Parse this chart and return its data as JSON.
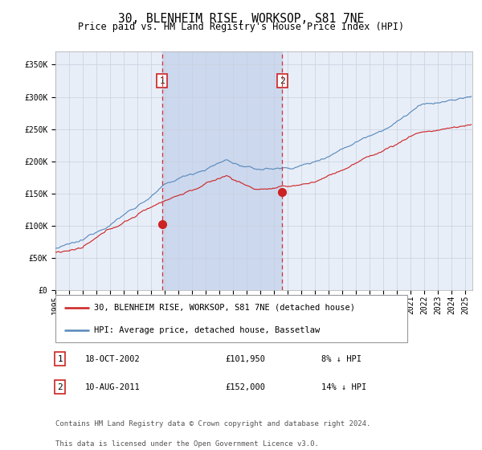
{
  "title": "30, BLENHEIM RISE, WORKSOP, S81 7NE",
  "subtitle": "Price paid vs. HM Land Registry's House Price Index (HPI)",
  "xlim_start": 1995.0,
  "xlim_end": 2025.5,
  "ylim_min": 0,
  "ylim_max": 370000,
  "yticks": [
    0,
    50000,
    100000,
    150000,
    200000,
    250000,
    300000,
    350000
  ],
  "ytick_labels": [
    "£0",
    "£50K",
    "£100K",
    "£150K",
    "£200K",
    "£250K",
    "£300K",
    "£350K"
  ],
  "purchase1_date": 2002.8,
  "purchase1_price": 101950,
  "purchase1_label": "18-OCT-2002",
  "purchase1_price_label": "£101,950",
  "purchase1_hpi_label": "8% ↓ HPI",
  "purchase2_date": 2011.6,
  "purchase2_price": 152000,
  "purchase2_label": "10-AUG-2011",
  "purchase2_price_label": "£152,000",
  "purchase2_hpi_label": "14% ↓ HPI",
  "bg_color": "#ffffff",
  "plot_bg_color": "#e8eef8",
  "grid_color": "#c8d0dc",
  "hpi_line_color": "#5588bb",
  "price_line_color": "#cc2222",
  "shade_color": "#ccd8ee",
  "vline_color": "#cc3333",
  "dot_color": "#cc2222",
  "legend_label1": "30, BLENHEIM RISE, WORKSOP, S81 7NE (detached house)",
  "legend_label2": "HPI: Average price, detached house, Bassetlaw",
  "footnote1": "Contains HM Land Registry data © Crown copyright and database right 2024.",
  "footnote2": "This data is licensed under the Open Government Licence v3.0.",
  "marker1_num": "1",
  "marker2_num": "2",
  "xtick_years": [
    1995,
    1996,
    1997,
    1998,
    1999,
    2000,
    2001,
    2002,
    2003,
    2004,
    2005,
    2006,
    2007,
    2008,
    2009,
    2010,
    2011,
    2012,
    2013,
    2014,
    2015,
    2016,
    2017,
    2018,
    2019,
    2020,
    2021,
    2022,
    2023,
    2024,
    2025
  ],
  "title_fontsize": 10.5,
  "subtitle_fontsize": 8.5,
  "tick_fontsize": 7,
  "legend_fontsize": 7.5,
  "ann_fontsize": 7.5,
  "footnote_fontsize": 6.5
}
